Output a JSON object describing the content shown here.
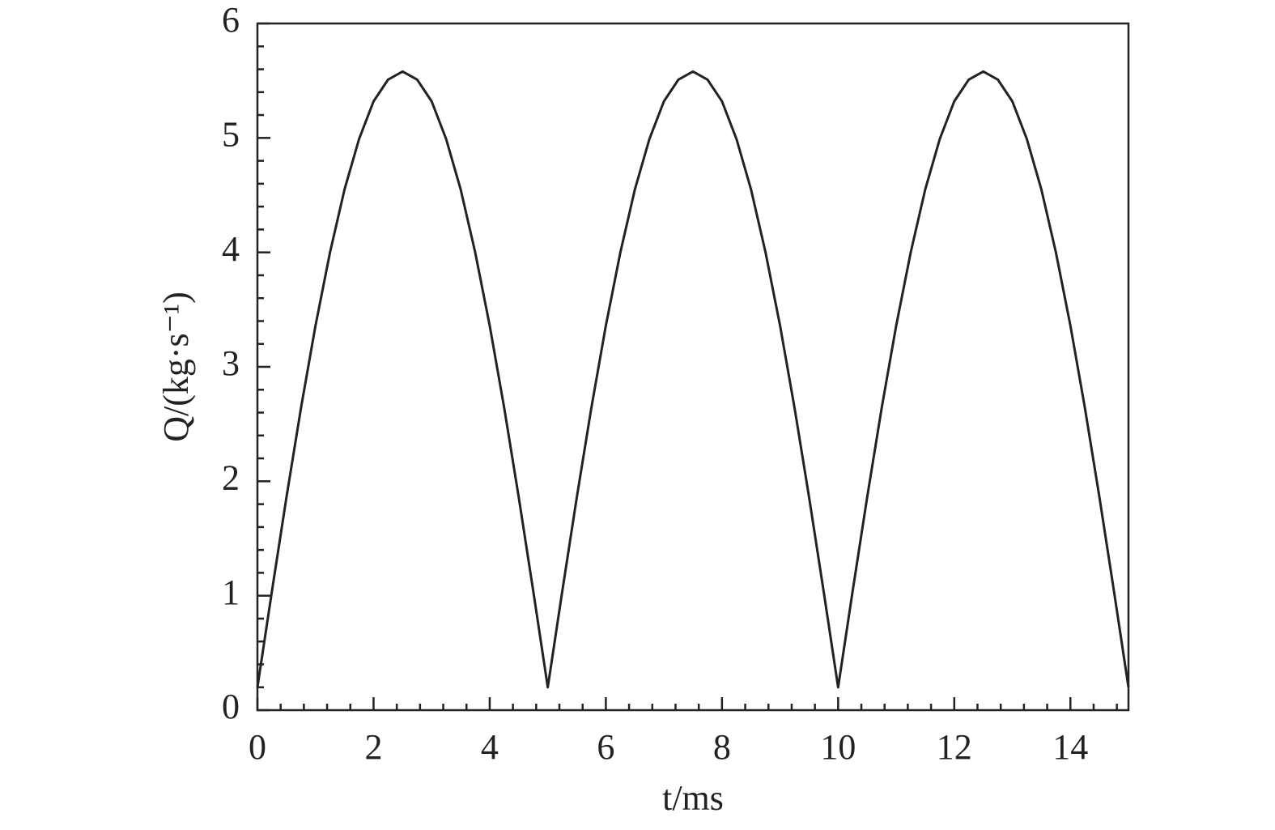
{
  "chart_data": {
    "type": "line",
    "xlabel": "t/ms",
    "ylabel": "Q/(kg·s⁻¹)",
    "x": [
      0,
      0.25,
      0.5,
      0.75,
      1,
      1.25,
      1.5,
      1.75,
      2,
      2.25,
      2.5,
      2.75,
      3,
      3.25,
      3.5,
      3.75,
      4,
      4.25,
      4.5,
      4.75,
      5,
      5.25,
      5.5,
      5.75,
      6,
      6.25,
      6.5,
      6.75,
      7,
      7.25,
      7.5,
      7.75,
      8,
      8.25,
      8.5,
      8.75,
      9,
      9.25,
      9.5,
      9.75,
      10,
      10.25,
      10.5,
      10.75,
      11,
      11.25,
      11.5,
      11.75,
      12,
      12.25,
      12.5,
      12.75,
      13,
      13.25,
      13.5,
      13.75,
      14,
      14.25,
      14.5,
      14.75,
      15
    ],
    "series": [
      {
        "color": "#222222",
        "values": [
          0.2,
          1.04,
          1.86,
          2.64,
          3.36,
          4.0,
          4.55,
          4.99,
          5.32,
          5.51,
          5.58,
          5.51,
          5.32,
          4.99,
          4.55,
          4.0,
          3.36,
          2.64,
          1.86,
          1.04,
          0.2,
          1.04,
          1.86,
          2.64,
          3.36,
          4.0,
          4.55,
          4.99,
          5.32,
          5.51,
          5.58,
          5.51,
          5.32,
          4.99,
          4.55,
          4.0,
          3.36,
          2.64,
          1.86,
          1.04,
          0.2,
          1.04,
          1.86,
          2.64,
          3.36,
          4.0,
          4.55,
          4.99,
          5.32,
          5.51,
          5.58,
          5.51,
          5.32,
          4.99,
          4.55,
          4.0,
          3.36,
          2.64,
          1.86,
          1.04,
          0.2
        ]
      }
    ],
    "xlim": [
      0,
      15
    ],
    "ylim": [
      0,
      6
    ],
    "xticks": [
      0,
      2,
      4,
      6,
      8,
      10,
      12,
      14
    ],
    "yticks": [
      0,
      1,
      2,
      3,
      4,
      5,
      6
    ],
    "xminorticks": [
      0.4,
      0.8,
      1.2,
      1.6,
      2.4,
      2.8,
      3.2,
      3.6,
      4.4,
      4.8,
      5.2,
      5.6,
      6.4,
      6.8,
      7.2,
      7.6,
      8.4,
      8.8,
      9.2,
      9.6,
      10.4,
      10.8,
      11.2,
      11.6,
      12.4,
      12.8,
      13.2,
      13.6,
      14.4,
      14.8
    ],
    "yminorticks": [
      0.2,
      0.4,
      0.6,
      0.8,
      1.2,
      1.4,
      1.6,
      1.8,
      2.2,
      2.4,
      2.6,
      2.8,
      3.2,
      3.4,
      3.6,
      3.8,
      4.2,
      4.4,
      4.6,
      4.8,
      5.2,
      5.4,
      5.6,
      5.8
    ]
  }
}
